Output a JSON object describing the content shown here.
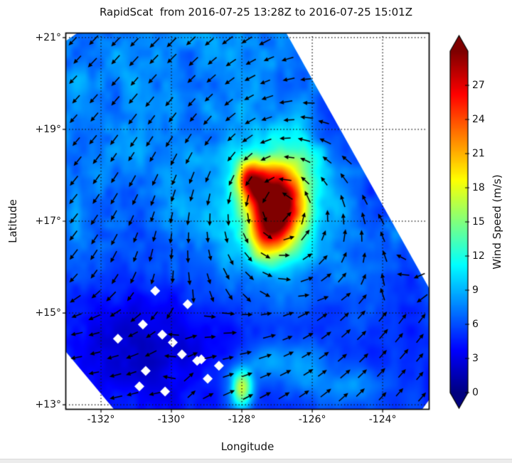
{
  "title": "RapidScat  from 2016-07-25 13:28Z to 2016-07-25 15:01Z",
  "axes": {
    "xlabel": "Longitude",
    "ylabel": "Latitude",
    "x_ticks": [
      {
        "lon": -132,
        "label": "-132°"
      },
      {
        "lon": -130,
        "label": "-130°"
      },
      {
        "lon": -128,
        "label": "-128°"
      },
      {
        "lon": -126,
        "label": "-126°"
      },
      {
        "lon": -124,
        "label": "-124°"
      }
    ],
    "y_ticks": [
      {
        "lat": 21,
        "label": "+21°"
      },
      {
        "lat": 19,
        "label": "+19°"
      },
      {
        "lat": 17,
        "label": "+17°"
      },
      {
        "lat": 15,
        "label": "+15°"
      },
      {
        "lat": 13,
        "label": "+13°"
      }
    ]
  },
  "colorbar": {
    "label": "Wind Speed (m/s)",
    "min": 0,
    "max": 30,
    "colormap": "jet",
    "extend": "both",
    "ticks": [
      {
        "value": 0,
        "label": "0"
      },
      {
        "value": 3,
        "label": "3"
      },
      {
        "value": 6,
        "label": "6"
      },
      {
        "value": 9,
        "label": "9"
      },
      {
        "value": 12,
        "label": "12"
      },
      {
        "value": 15,
        "label": "15"
      },
      {
        "value": 18,
        "label": "18"
      },
      {
        "value": 21,
        "label": "21"
      },
      {
        "value": 24,
        "label": "24"
      },
      {
        "value": 27,
        "label": "27"
      }
    ]
  },
  "chart_data": {
    "type": "heatmap",
    "title": "RapidScat  from 2016-07-25 13:28Z to 2016-07-25 15:01Z",
    "xlabel": "Longitude",
    "ylabel": "Latitude",
    "units": "m/s",
    "xlim": [
      -132.99,
      -122.69
    ],
    "ylim": [
      12.91,
      21.09
    ],
    "grid": true,
    "grid_style": "dotted",
    "wind_field": {
      "base_speed_south_ms": 5.2,
      "base_speed_north_ms": 7.8,
      "base_transition_lat": [
        14.2,
        16.8
      ],
      "noise_amplitude_ms": 1.3,
      "features": [
        {
          "name": "storm-core",
          "lon": -127.0,
          "lat": 17.35,
          "sigma_lon": 0.58,
          "sigma_lat": 0.64,
          "amp_ms": 21
        },
        {
          "name": "storm-inner-max",
          "lon": -127.05,
          "lat": 17.2,
          "sigma_lon": 0.22,
          "sigma_lat": 0.25,
          "amp_ms": 3
        },
        {
          "name": "storm-halo",
          "lon": -127.3,
          "lat": 17.4,
          "sigma_lon": 1.05,
          "sigma_lat": 0.95,
          "amp_ms": 3.5
        },
        {
          "name": "nw-band",
          "lon": -127.82,
          "lat": 17.95,
          "sigma_lon": 0.26,
          "sigma_lat": 0.28,
          "amp_ms": 11
        },
        {
          "name": "nw-bridge",
          "lon": -127.5,
          "lat": 17.7,
          "sigma_lon": 0.3,
          "sigma_lat": 0.3,
          "amp_ms": 5
        },
        {
          "name": "south-extension",
          "lon": -127.35,
          "lat": 16.55,
          "sigma_lon": 0.35,
          "sigma_lat": 0.35,
          "amp_ms": 6
        },
        {
          "name": "south-cell",
          "lon": -128.0,
          "lat": 13.35,
          "sigma_lon": 0.22,
          "sigma_lat": 0.3,
          "amp_ms": 12
        },
        {
          "name": "south-patch-1",
          "lon": -127.3,
          "lat": 14.0,
          "sigma_lon": 0.45,
          "sigma_lat": 0.3,
          "amp_ms": 3.5
        },
        {
          "name": "south-patch-2",
          "lon": -126.2,
          "lat": 13.75,
          "sigma_lon": 0.5,
          "sigma_lat": 0.35,
          "amp_ms": 3.5
        },
        {
          "name": "se-patch",
          "lon": -124.9,
          "lat": 13.4,
          "sigma_lon": 0.6,
          "sigma_lat": 0.3,
          "amp_ms": 3
        },
        {
          "name": "ne-patch",
          "lon": -126.35,
          "lat": 18.25,
          "sigma_lon": 0.5,
          "sigma_lat": 0.4,
          "amp_ms": 2.5
        },
        {
          "name": "sw-calm",
          "lon": -130.6,
          "lat": 14.3,
          "sigma_lon": 1.5,
          "sigma_lat": 1.1,
          "amp_ms": -2.8
        },
        {
          "name": "west-calm",
          "lon": -131.6,
          "lat": 16.3,
          "sigma_lon": 1.1,
          "sigma_lat": 0.9,
          "amp_ms": -1.2
        },
        {
          "name": "edge-dark-1",
          "lon": -125.3,
          "lat": 19.3,
          "sigma_lon": 0.45,
          "sigma_lat": 0.9,
          "amp_ms": -2.2
        },
        {
          "name": "edge-dark-2",
          "lon": -124.2,
          "lat": 17.3,
          "sigma_lon": 0.45,
          "sigma_lat": 0.9,
          "amp_ms": -2.2
        },
        {
          "name": "edge-dark-3",
          "lon": -123.3,
          "lat": 15.8,
          "sigma_lon": 0.4,
          "sigma_lat": 0.8,
          "amp_ms": -1.8
        }
      ]
    },
    "circulation": {
      "center_lon": -127.0,
      "center_lat": 17.35,
      "rotation": "counterclockwise",
      "vortex_peak_ms": 16,
      "vortex_radius_deg": 1.0,
      "background_ms": 4,
      "background_dir_deg": {
        "nw": 225,
        "ne": 230,
        "sw": 185,
        "se": 50
      },
      "background_blend": {
        "lon_center": -129.8,
        "lon_width": 2.2,
        "lat_center": 15.3,
        "lat_width": 1.8
      }
    },
    "arrows": {
      "grid_spacing_px": 27,
      "color": "#000000"
    },
    "no_data_polygons": [
      {
        "name": "northeast-outside-swath",
        "points": [
          [
            -126.73,
            21.09
          ],
          [
            -122.69,
            15.55
          ],
          [
            -122.69,
            21.09
          ]
        ]
      },
      {
        "name": "southwest-outside-swath",
        "points": [
          [
            -132.99,
            14.15
          ],
          [
            -131.64,
            12.91
          ],
          [
            -132.99,
            12.91
          ]
        ]
      },
      {
        "name": "top-left-notch",
        "points": [
          [
            -132.99,
            21.09
          ],
          [
            -132.69,
            21.09
          ],
          [
            -132.99,
            20.93
          ]
        ]
      },
      {
        "name": "bottom-right-notch",
        "points": [
          [
            -122.87,
            12.91
          ],
          [
            -122.69,
            13.1
          ],
          [
            -122.69,
            12.91
          ]
        ]
      }
    ],
    "missing_cells": [
      {
        "lon": -130.46,
        "lat": 15.48
      },
      {
        "lon": -129.54,
        "lat": 15.19
      },
      {
        "lon": -130.81,
        "lat": 14.75
      },
      {
        "lon": -131.52,
        "lat": 14.44
      },
      {
        "lon": -130.26,
        "lat": 14.53
      },
      {
        "lon": -129.96,
        "lat": 14.36
      },
      {
        "lon": -129.7,
        "lat": 14.1
      },
      {
        "lon": -129.27,
        "lat": 13.96
      },
      {
        "lon": -128.65,
        "lat": 13.85
      },
      {
        "lon": -128.97,
        "lat": 13.57
      },
      {
        "lon": -130.73,
        "lat": 13.74
      },
      {
        "lon": -130.91,
        "lat": 13.4
      },
      {
        "lon": -130.18,
        "lat": 13.29
      },
      {
        "lon": -129.15,
        "lat": 13.99
      }
    ],
    "colorbar": {
      "label": "Wind Speed (m/s)",
      "min": 0,
      "max": 30,
      "ticks": [
        0,
        3,
        6,
        9,
        12,
        15,
        18,
        21,
        24,
        27
      ],
      "colormap": "jet",
      "extend": "both"
    }
  },
  "footer": {
    "divider_color": "#ececec"
  }
}
